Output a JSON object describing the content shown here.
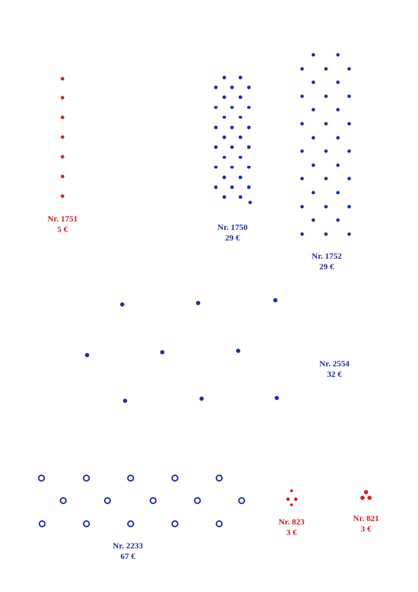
{
  "items": [
    {
      "id": "1751",
      "number": "Nr. 1751",
      "price": "5 €",
      "color": "#e01a1a"
    },
    {
      "id": "1750",
      "number": "Nr. 1750",
      "price": "29 €",
      "color": "#1a2fb0"
    },
    {
      "id": "1752",
      "number": "Nr. 1752",
      "price": "29 €",
      "color": "#1a2fb0"
    },
    {
      "id": "2554",
      "number": "Nr. 2554",
      "price": "32 €",
      "color": "#1a2fb0"
    },
    {
      "id": "2233",
      "number": "Nr. 2233",
      "price": "67 €",
      "color": "#1a2fb0"
    },
    {
      "id": "823",
      "number": "Nr. 823",
      "price": "3 €",
      "color": "#e01a1a"
    },
    {
      "id": "821",
      "number": "Nr. 821",
      "price": "3 €",
      "color": "#e01a1a"
    }
  ]
}
